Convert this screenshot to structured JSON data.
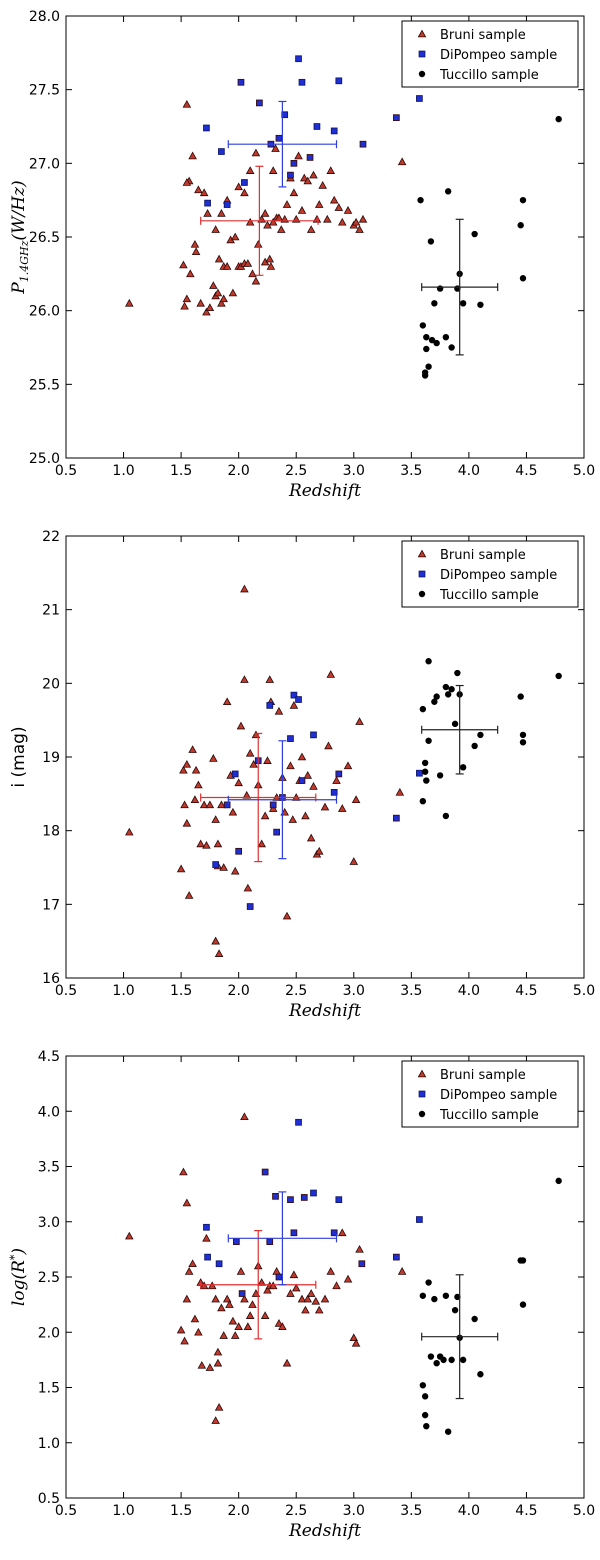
{
  "colors": {
    "bruni": "#c0392b",
    "dipompeo": "#1f2fd6",
    "tuccillo": "#000000",
    "bruni_err": "#e03030",
    "dipompeo_err": "#2f3fdf",
    "tuccillo_err": "#222222"
  },
  "chart_data": [
    {
      "type": "scatter",
      "title": "",
      "xlabel": "Redshift",
      "ylabel": "P1.4GHz(W/Hz)",
      "ylabel_main": "P",
      "ylabel_sub": "1.4GHz",
      "ylabel_rest": "(W/Hz)",
      "xlim": [
        0.5,
        5.0
      ],
      "ylim": [
        25.0,
        28.0
      ],
      "xticks": [
        "0.5",
        "1.0",
        "1.5",
        "2.0",
        "2.5",
        "3.0",
        "3.5",
        "4.0",
        "4.5",
        "5.0"
      ],
      "yticks": [
        "25.0",
        "25.5",
        "26.0",
        "26.5",
        "27.0",
        "27.5",
        "28.0"
      ],
      "legend_position": "top-right",
      "series": [
        {
          "name": "Bruni sample",
          "marker": "triangle",
          "color_key": "bruni",
          "x": [
            1.05,
            1.52,
            1.55,
            1.55,
            1.53,
            1.57,
            1.6,
            1.62,
            1.63,
            1.65,
            1.67,
            1.7,
            1.72,
            1.73,
            1.75,
            1.78,
            1.8,
            1.8,
            1.82,
            1.83,
            1.85,
            1.85,
            1.87,
            1.87,
            1.9,
            1.9,
            1.93,
            1.95,
            1.97,
            2.0,
            2.0,
            2.02,
            2.05,
            2.05,
            2.08,
            2.1,
            2.1,
            2.12,
            2.15,
            2.15,
            2.17,
            2.2,
            2.23,
            2.23,
            2.25,
            2.27,
            2.28,
            2.3,
            2.3,
            2.32,
            2.33,
            2.35,
            2.37,
            2.4,
            2.42,
            2.45,
            2.48,
            2.5,
            2.52,
            2.55,
            2.57,
            2.6,
            2.63,
            2.65,
            2.68,
            2.7,
            2.73,
            2.77,
            2.8,
            2.83,
            2.87,
            2.9,
            2.95,
            3.0,
            3.02,
            3.05,
            3.08,
            3.42,
            1.55,
            1.58
          ],
          "y": [
            26.05,
            26.31,
            27.4,
            26.08,
            26.03,
            26.88,
            27.05,
            26.45,
            26.4,
            26.82,
            26.05,
            26.8,
            25.99,
            26.66,
            26.02,
            26.17,
            26.1,
            26.55,
            26.12,
            26.35,
            26.05,
            26.66,
            26.08,
            26.3,
            26.75,
            26.3,
            26.48,
            26.12,
            26.5,
            26.3,
            26.84,
            26.3,
            26.8,
            26.32,
            26.32,
            26.6,
            26.95,
            26.25,
            26.2,
            27.07,
            26.45,
            26.62,
            26.33,
            26.66,
            26.58,
            26.35,
            26.3,
            26.6,
            26.95,
            27.1,
            26.63,
            26.63,
            26.55,
            26.62,
            26.72,
            26.9,
            26.8,
            26.62,
            27.05,
            26.68,
            26.9,
            26.88,
            26.55,
            26.92,
            26.62,
            26.72,
            26.85,
            26.62,
            26.95,
            26.75,
            26.7,
            26.6,
            26.68,
            26.58,
            26.6,
            26.55,
            26.62,
            27.01,
            26.87,
            26.25
          ]
        },
        {
          "name": "DiPompeo sample",
          "marker": "square",
          "color_key": "dipompeo",
          "x": [
            1.72,
            1.73,
            1.85,
            1.9,
            2.02,
            2.05,
            2.18,
            2.28,
            2.35,
            2.45,
            2.48,
            2.52,
            2.55,
            2.62,
            2.68,
            2.83,
            2.87,
            3.08,
            3.37,
            3.57,
            2.4
          ],
          "y": [
            27.24,
            26.73,
            27.08,
            26.72,
            27.55,
            26.87,
            27.41,
            27.13,
            27.17,
            26.92,
            27.0,
            27.71,
            27.55,
            27.04,
            27.25,
            27.22,
            27.56,
            27.13,
            27.31,
            27.44,
            27.33
          ],
          "edge_dark": [
            false,
            false,
            false,
            false,
            true,
            true,
            true,
            true,
            true,
            true,
            true,
            false,
            false,
            true,
            false,
            false,
            false,
            true,
            true,
            false,
            false
          ]
        },
        {
          "name": "Tuccillo sample",
          "marker": "circle",
          "color_key": "tuccillo",
          "x": [
            3.58,
            3.6,
            3.62,
            3.62,
            3.63,
            3.65,
            3.67,
            3.7,
            3.72,
            3.75,
            3.8,
            3.82,
            3.85,
            3.9,
            3.92,
            3.95,
            4.05,
            4.1,
            4.45,
            4.47,
            4.47,
            4.78,
            3.68,
            3.63
          ],
          "y": [
            26.75,
            25.9,
            25.58,
            25.56,
            25.82,
            25.62,
            26.47,
            26.05,
            25.78,
            26.15,
            25.82,
            26.81,
            25.75,
            26.15,
            26.25,
            26.05,
            26.52,
            26.04,
            26.58,
            26.22,
            26.75,
            27.3,
            25.8,
            25.74
          ]
        }
      ],
      "errorbars": [
        {
          "series": "Bruni sample",
          "color_key": "bruni_err",
          "x": 2.18,
          "y": 26.61,
          "xerr": 0.51,
          "yerr": 0.37
        },
        {
          "series": "DiPompeo sample",
          "color_key": "dipompeo_err",
          "x": 2.38,
          "y": 27.13,
          "xerr": 0.47,
          "yerr": 0.29
        },
        {
          "series": "Tuccillo sample",
          "color_key": "tuccillo_err",
          "x": 3.92,
          "y": 26.16,
          "xerr": 0.33,
          "yerr": 0.46
        }
      ]
    },
    {
      "type": "scatter",
      "title": "",
      "xlabel": "Redshift",
      "ylabel": "i (mag)",
      "xlim": [
        0.5,
        5.0
      ],
      "ylim": [
        16.0,
        22.0
      ],
      "xticks": [
        "0.5",
        "1.0",
        "1.5",
        "2.0",
        "2.5",
        "3.0",
        "3.5",
        "4.0",
        "4.5",
        "5.0"
      ],
      "yticks": [
        "16",
        "17",
        "18",
        "19",
        "20",
        "21",
        "22"
      ],
      "legend_position": "top-right",
      "series": [
        {
          "name": "Bruni sample",
          "marker": "triangle",
          "color_key": "bruni",
          "x": [
            1.05,
            1.5,
            1.52,
            1.53,
            1.55,
            1.55,
            1.57,
            1.6,
            1.62,
            1.63,
            1.65,
            1.67,
            1.7,
            1.72,
            1.75,
            1.78,
            1.8,
            1.8,
            1.82,
            1.83,
            1.85,
            1.87,
            1.9,
            1.93,
            1.95,
            1.97,
            2.0,
            2.02,
            2.05,
            2.05,
            2.07,
            2.08,
            2.1,
            2.13,
            2.15,
            2.17,
            2.2,
            2.23,
            2.25,
            2.27,
            2.28,
            2.3,
            2.33,
            2.35,
            2.38,
            2.4,
            2.42,
            2.45,
            2.47,
            2.5,
            2.53,
            2.55,
            2.58,
            2.6,
            2.63,
            2.65,
            2.68,
            2.7,
            2.75,
            2.78,
            2.8,
            2.85,
            2.9,
            2.95,
            3.0,
            3.02,
            3.05,
            3.4,
            1.8,
            1.82,
            2.48
          ],
          "y": [
            17.98,
            17.48,
            18.82,
            18.35,
            18.1,
            18.9,
            17.12,
            19.1,
            18.42,
            18.82,
            18.62,
            17.82,
            18.35,
            17.8,
            18.35,
            18.98,
            16.5,
            18.15,
            17.52,
            16.33,
            18.35,
            17.5,
            19.75,
            18.75,
            18.25,
            17.45,
            18.65,
            19.42,
            21.28,
            20.05,
            18.48,
            17.22,
            19.05,
            18.9,
            19.3,
            18.62,
            17.82,
            18.2,
            18.95,
            20.05,
            19.75,
            18.3,
            18.45,
            19.62,
            18.72,
            18.25,
            16.84,
            18.88,
            18.15,
            18.45,
            18.68,
            19.0,
            18.2,
            18.75,
            17.9,
            18.6,
            17.68,
            17.72,
            18.32,
            19.15,
            20.12,
            18.68,
            18.3,
            18.88,
            17.58,
            18.42,
            19.48,
            18.52,
            16.5,
            17.82,
            19.7
          ]
        },
        {
          "name": "DiPompeo sample",
          "marker": "square",
          "color_key": "dipompeo",
          "x": [
            1.8,
            1.9,
            1.97,
            2.0,
            2.1,
            2.17,
            2.27,
            2.3,
            2.33,
            2.45,
            2.48,
            2.52,
            2.55,
            2.65,
            2.83,
            2.87,
            3.37,
            3.57,
            2.38
          ],
          "y": [
            17.54,
            18.35,
            18.77,
            17.72,
            16.97,
            18.95,
            19.7,
            18.35,
            17.98,
            19.25,
            19.84,
            19.78,
            18.68,
            19.3,
            18.52,
            18.77,
            18.17,
            18.78,
            18.45
          ],
          "edge_dark": [
            false,
            true,
            false,
            true,
            true,
            true,
            false,
            true,
            true,
            true,
            false,
            false,
            true,
            false,
            false,
            true,
            true,
            false,
            true
          ]
        },
        {
          "name": "Tuccillo sample",
          "marker": "circle",
          "color_key": "tuccillo",
          "x": [
            3.6,
            3.62,
            3.63,
            3.65,
            3.65,
            3.7,
            3.72,
            3.75,
            3.8,
            3.8,
            3.82,
            3.85,
            3.88,
            3.9,
            3.92,
            3.95,
            4.05,
            4.1,
            4.45,
            4.47,
            4.47,
            4.78,
            3.6,
            3.62
          ],
          "y": [
            19.65,
            18.92,
            18.68,
            20.3,
            19.22,
            19.75,
            19.82,
            18.75,
            18.2,
            19.95,
            19.85,
            19.92,
            19.45,
            20.14,
            19.85,
            18.86,
            19.15,
            19.3,
            19.82,
            19.3,
            19.2,
            20.1,
            18.4,
            18.8
          ]
        }
      ],
      "errorbars": [
        {
          "series": "Bruni sample",
          "color_key": "bruni_err",
          "x": 2.17,
          "y": 18.45,
          "xerr": 0.5,
          "yerr": 0.87
        },
        {
          "series": "DiPompeo sample",
          "color_key": "dipompeo_err",
          "x": 2.38,
          "y": 18.42,
          "xerr": 0.47,
          "yerr": 0.8
        },
        {
          "series": "Tuccillo sample",
          "color_key": "tuccillo_err",
          "x": 3.92,
          "y": 19.37,
          "xerr": 0.33,
          "yerr": 0.6
        }
      ]
    },
    {
      "type": "scatter",
      "title": "",
      "xlabel": "Redshift",
      "ylabel": "log(R*)",
      "ylabel_main": "log(R",
      "ylabel_sup": "*",
      "ylabel_rest": ")",
      "xlim": [
        0.5,
        5.0
      ],
      "ylim": [
        0.5,
        4.5
      ],
      "xticks": [
        "0.5",
        "1.0",
        "1.5",
        "2.0",
        "2.5",
        "3.0",
        "3.5",
        "4.0",
        "4.5",
        "5.0"
      ],
      "yticks": [
        "0.5",
        "1.0",
        "1.5",
        "2.0",
        "2.5",
        "3.0",
        "3.5",
        "4.0",
        "4.5"
      ],
      "legend_position": "top-right",
      "series": [
        {
          "name": "Bruni sample",
          "marker": "triangle",
          "color_key": "bruni",
          "x": [
            1.05,
            1.5,
            1.52,
            1.53,
            1.55,
            1.55,
            1.57,
            1.6,
            1.62,
            1.65,
            1.67,
            1.68,
            1.7,
            1.72,
            1.75,
            1.77,
            1.8,
            1.82,
            1.83,
            1.85,
            1.87,
            1.9,
            1.92,
            1.95,
            1.97,
            2.0,
            2.02,
            2.05,
            2.05,
            2.08,
            2.1,
            2.12,
            2.15,
            2.17,
            2.2,
            2.23,
            2.25,
            2.27,
            2.3,
            2.33,
            2.35,
            2.38,
            2.42,
            2.45,
            2.48,
            2.5,
            2.55,
            2.58,
            2.6,
            2.63,
            2.67,
            2.7,
            2.75,
            2.8,
            2.85,
            2.9,
            2.95,
            3.0,
            3.02,
            3.05,
            3.42,
            1.8,
            1.82
          ],
          "y": [
            2.87,
            2.02,
            3.45,
            1.92,
            2.3,
            3.17,
            2.55,
            2.62,
            2.12,
            2.0,
            2.45,
            1.7,
            2.42,
            2.85,
            1.68,
            2.42,
            2.3,
            1.72,
            1.32,
            2.22,
            1.97,
            2.3,
            2.25,
            2.1,
            1.97,
            2.05,
            2.55,
            3.95,
            2.3,
            2.05,
            2.15,
            2.25,
            2.35,
            2.6,
            2.45,
            2.15,
            2.38,
            2.42,
            2.42,
            2.55,
            2.08,
            2.05,
            1.72,
            2.35,
            2.52,
            2.4,
            2.3,
            2.2,
            2.3,
            2.35,
            2.28,
            2.2,
            2.3,
            2.55,
            2.42,
            2.9,
            2.48,
            1.95,
            1.9,
            2.75,
            2.55,
            1.2,
            1.82
          ]
        },
        {
          "name": "DiPompeo sample",
          "marker": "square",
          "color_key": "dipompeo",
          "x": [
            1.72,
            1.73,
            1.83,
            1.98,
            2.03,
            2.23,
            2.27,
            2.32,
            2.35,
            2.45,
            2.48,
            2.52,
            2.57,
            2.65,
            2.83,
            2.87,
            3.07,
            3.37,
            3.57
          ],
          "y": [
            2.95,
            2.68,
            2.62,
            2.82,
            2.35,
            3.45,
            2.82,
            3.23,
            2.5,
            3.2,
            2.9,
            3.9,
            3.22,
            3.26,
            2.9,
            3.2,
            2.62,
            2.68,
            3.02
          ],
          "edge_dark": [
            false,
            false,
            false,
            true,
            true,
            true,
            true,
            true,
            true,
            true,
            true,
            false,
            true,
            false,
            true,
            false,
            true,
            true,
            false
          ]
        },
        {
          "name": "Tuccillo sample",
          "marker": "circle",
          "color_key": "tuccillo",
          "x": [
            3.6,
            3.62,
            3.63,
            3.65,
            3.67,
            3.7,
            3.72,
            3.75,
            3.78,
            3.8,
            3.82,
            3.85,
            3.88,
            3.9,
            3.92,
            3.95,
            4.05,
            4.1,
            4.45,
            4.47,
            4.47,
            4.78,
            3.6,
            3.62
          ],
          "y": [
            2.33,
            1.25,
            1.15,
            2.45,
            1.78,
            2.3,
            1.72,
            1.78,
            1.75,
            2.33,
            1.1,
            1.75,
            2.2,
            2.32,
            1.95,
            1.75,
            2.12,
            1.62,
            2.65,
            2.25,
            2.65,
            3.37,
            1.52,
            1.42
          ]
        }
      ],
      "errorbars": [
        {
          "series": "Bruni sample",
          "color_key": "bruni_err",
          "x": 2.17,
          "y": 2.43,
          "xerr": 0.5,
          "yerr": 0.49
        },
        {
          "series": "DiPompeo sample",
          "color_key": "dipompeo_err",
          "x": 2.38,
          "y": 2.85,
          "xerr": 0.47,
          "yerr": 0.42
        },
        {
          "series": "Tuccillo sample",
          "color_key": "tuccillo_err",
          "x": 3.92,
          "y": 1.96,
          "xerr": 0.33,
          "yerr": 0.56
        }
      ]
    }
  ]
}
